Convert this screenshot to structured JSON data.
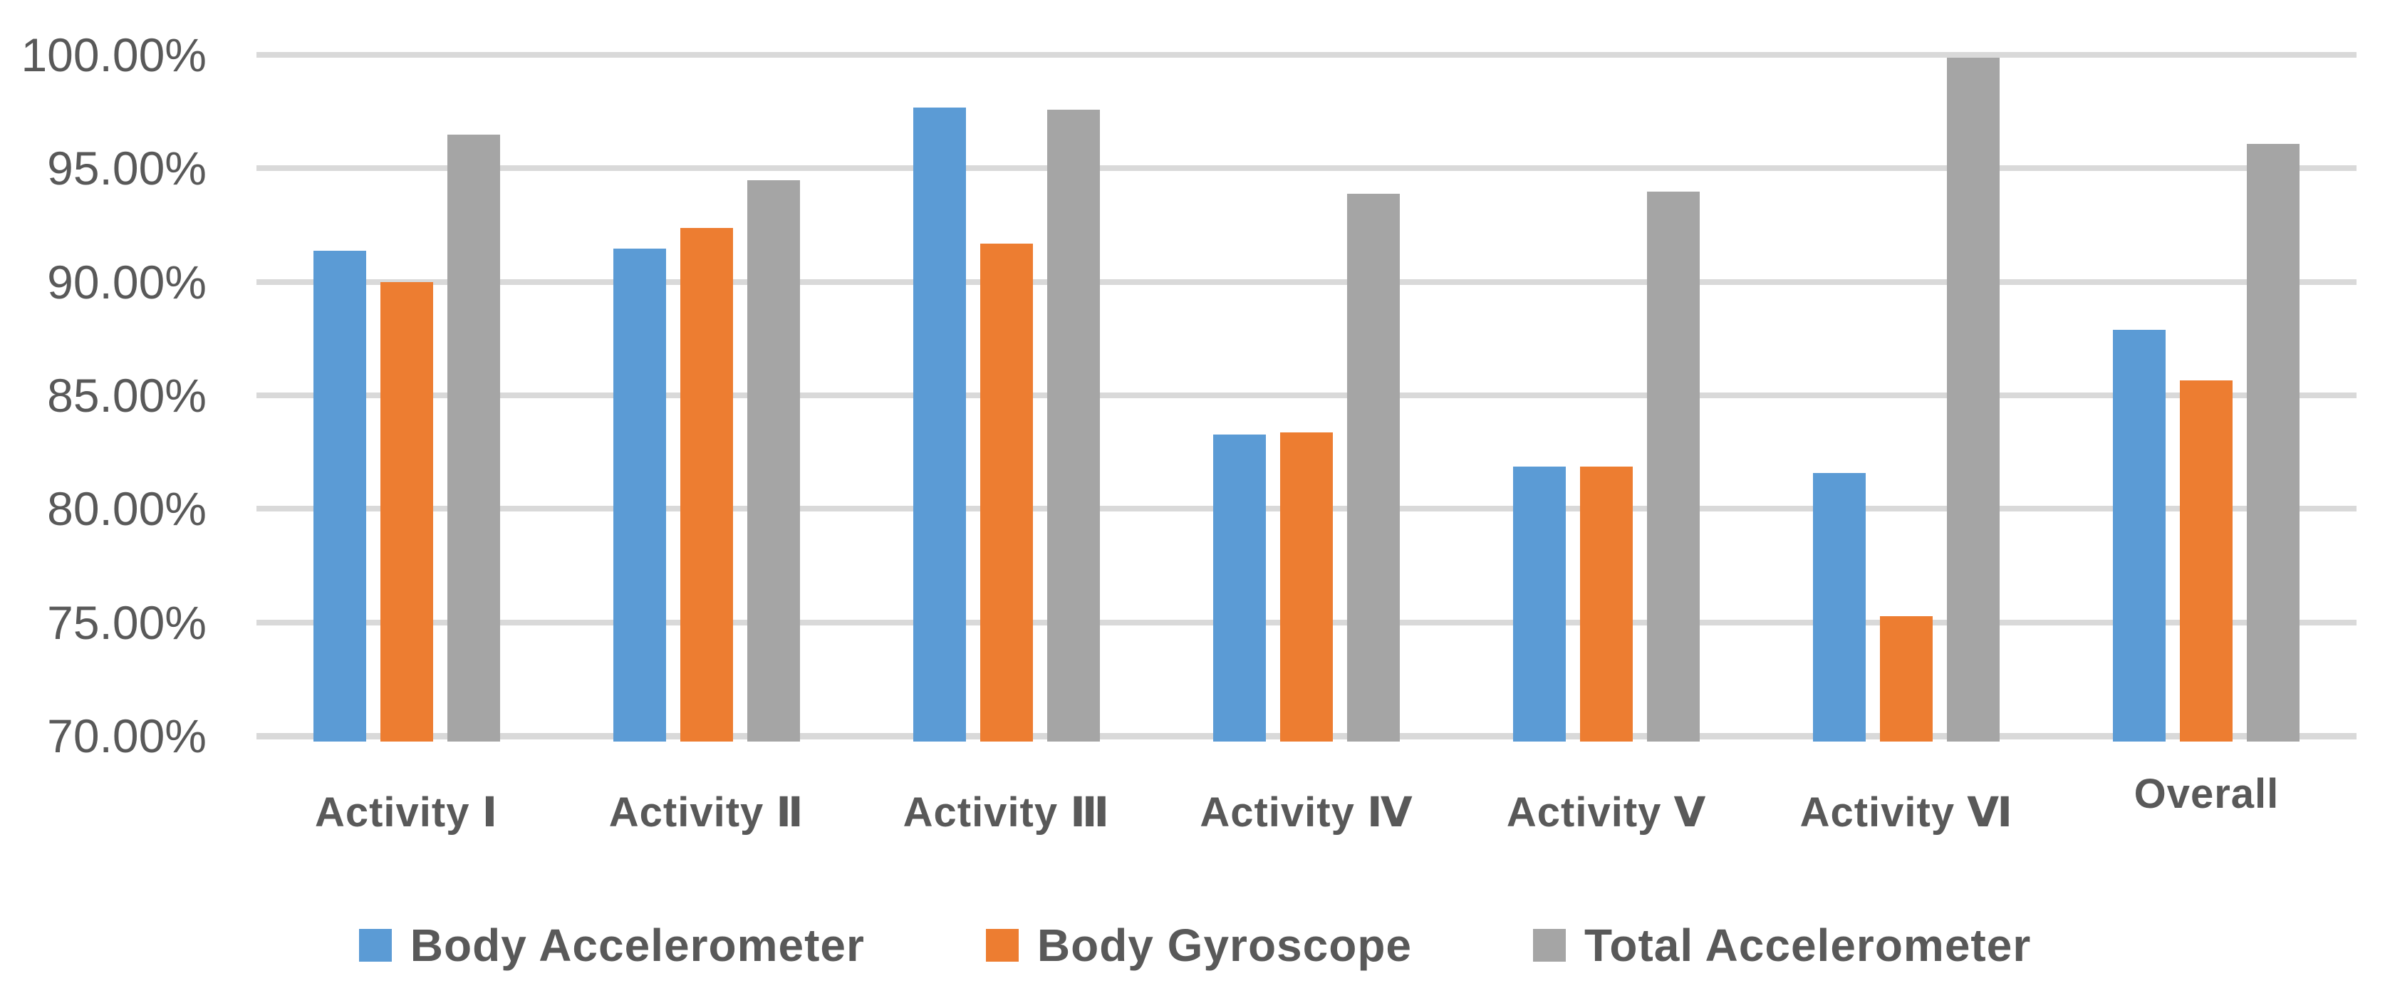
{
  "chart_data": {
    "type": "bar",
    "title": "",
    "categories": [
      "Activity Ⅰ",
      "Activity Ⅱ",
      "Activity Ⅲ",
      "Activity Ⅳ",
      "Activity Ⅴ",
      "Activity Ⅵ",
      "Overall"
    ],
    "series": [
      {
        "name": "Body Accelerometer",
        "color": "#5B9BD5",
        "values": [
          91.5,
          91.6,
          97.8,
          83.4,
          82.0,
          81.7,
          88.0
        ]
      },
      {
        "name": "Body Gyroscope",
        "color": "#ED7D31",
        "values": [
          90.1,
          92.5,
          91.8,
          83.5,
          82.0,
          75.4,
          85.8
        ]
      },
      {
        "name": "Total Accelerometer",
        "color": "#A5A5A5",
        "values": [
          96.6,
          94.6,
          97.7,
          94.0,
          94.1,
          100.0,
          96.2
        ]
      }
    ],
    "y_axis": {
      "min": 70,
      "max": 100,
      "step": 5,
      "tick_labels": [
        "100.00%",
        "95.00%",
        "90.00%",
        "85.00%",
        "80.00%",
        "75.00%",
        "70.00%"
      ]
    },
    "x_axis": {
      "label": ""
    },
    "grid": true,
    "legend_position": "bottom",
    "styles": {
      "grid_color": "#D9D9D9",
      "axis_text_color": "#595959",
      "background": "#FFFFFF"
    }
  }
}
